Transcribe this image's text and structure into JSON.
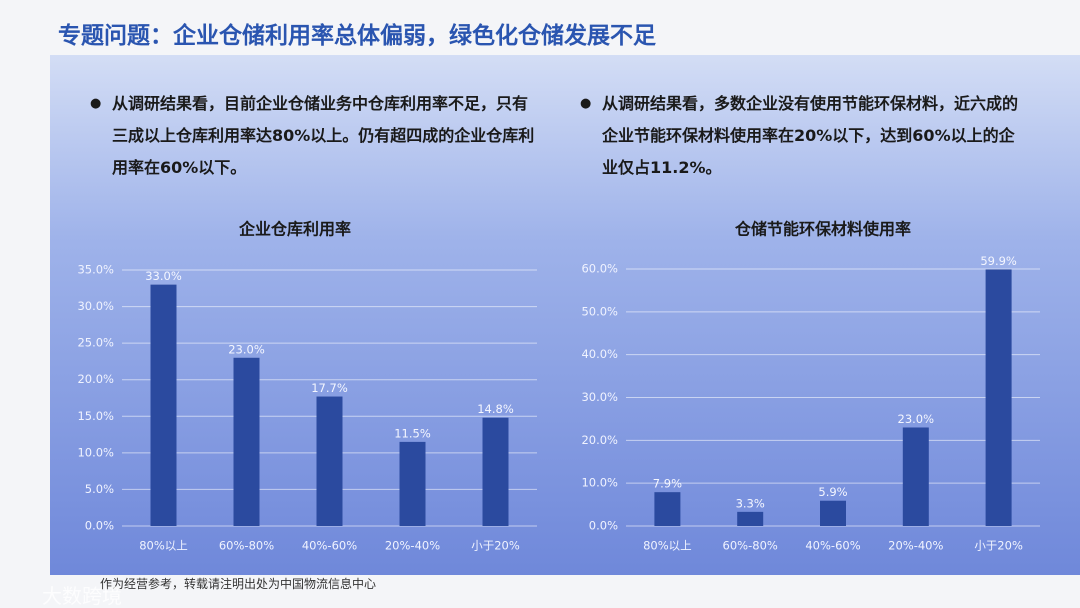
{
  "title": "专题问题：企业仓储利用率总体偏弱，绿色化仓储发展不足",
  "bullets": [
    "从调研结果看，目前企业仓储业务中仓库利用率不足，只有三成以上仓库利用率达80%以上。仍有超四成的企业仓库利用率在60%以下。",
    "从调研结果看，多数企业没有使用节能环保材料，近六成的企业节能环保材料使用率在20%以下，达到60%以上的企业仅占11.2%。"
  ],
  "footer": "作为经营参考，转载请注明出处为中国物流信息中心",
  "watermark": "大数跨境",
  "chart_data": [
    {
      "type": "bar",
      "title": "企业仓库利用率",
      "color": "#2b4a9f",
      "grid": true,
      "categories": [
        "80%以上",
        "60%-80%",
        "40%-60%",
        "20%-40%",
        "小于20%"
      ],
      "values": [
        33.0,
        23.0,
        17.7,
        11.5,
        14.8
      ],
      "value_labels": [
        "33.0%",
        "23.0%",
        "17.7%",
        "11.5%",
        "14.8%"
      ],
      "ylim": [
        0,
        35
      ],
      "yticks": [
        {
          "value": 0,
          "label": "0.0%"
        },
        {
          "value": 5,
          "label": "5.0%"
        },
        {
          "value": 10,
          "label": "10.0%"
        },
        {
          "value": 15,
          "label": "15.0%"
        },
        {
          "value": 20,
          "label": "20.0%"
        },
        {
          "value": 25,
          "label": "25.0%"
        },
        {
          "value": 30,
          "label": "30.0%"
        },
        {
          "value": 35,
          "label": "35.0%"
        }
      ]
    },
    {
      "type": "bar",
      "title": "仓储节能环保材料使用率",
      "color": "#2b4a9f",
      "grid": true,
      "categories": [
        "80%以上",
        "60%-80%",
        "40%-60%",
        "20%-40%",
        "小于20%"
      ],
      "values": [
        7.9,
        3.3,
        5.9,
        23.0,
        59.9
      ],
      "value_labels": [
        "7.9%",
        "3.3%",
        "5.9%",
        "23.0%",
        "59.9%"
      ],
      "ylim": [
        0,
        60
      ],
      "yticks": [
        {
          "value": 0,
          "label": "0.0%"
        },
        {
          "value": 10,
          "label": "10.0%"
        },
        {
          "value": 20,
          "label": "20.0%"
        },
        {
          "value": 30,
          "label": "30.0%"
        },
        {
          "value": 40,
          "label": "40.0%"
        },
        {
          "value": 50,
          "label": "50.0%"
        },
        {
          "value": 60,
          "label": "60.0%"
        }
      ]
    }
  ]
}
